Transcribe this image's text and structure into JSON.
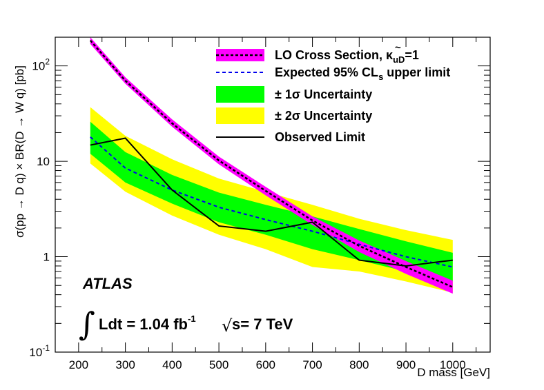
{
  "chart_data": {
    "type": "line",
    "xlabel": "D mass [GeV]",
    "ylabel": "σ(pp → D q) × BR(D → W q) [pb]",
    "xlim": [
      150,
      1080
    ],
    "ylim": [
      0.1,
      200
    ],
    "yscale": "log",
    "x_ticks": [
      200,
      300,
      400,
      500,
      600,
      700,
      800,
      900,
      1000
    ],
    "x_tick_labels": [
      "200",
      "300",
      "400",
      "500",
      "600",
      "700",
      "800",
      "900",
      "1000"
    ],
    "y_ticks": [
      0.1,
      1,
      10,
      100
    ],
    "y_tick_labels": [
      {
        "base": "10",
        "exp": "-1"
      },
      {
        "base": "1",
        "exp": ""
      },
      {
        "base": "10",
        "exp": ""
      },
      {
        "base": "10",
        "exp": "2"
      }
    ],
    "x": [
      225,
      300,
      400,
      500,
      600,
      700,
      800,
      900,
      1000
    ],
    "series": [
      {
        "name": "LO Cross Section",
        "style": "band-with-dashed-center",
        "values": [
          185,
          70,
          25,
          10.2,
          4.9,
          2.4,
          1.3,
          0.78,
          0.48
        ],
        "band_low": [
          170,
          65,
          23,
          9.3,
          4.4,
          2.15,
          1.12,
          0.66,
          0.41
        ],
        "band_high": [
          200,
          76,
          27.5,
          11.2,
          5.4,
          2.65,
          1.48,
          0.9,
          0.56
        ]
      },
      {
        "name": "Expected 95% CLs upper limit",
        "style": "dashed",
        "values": [
          18,
          8.5,
          5.0,
          3.3,
          2.45,
          1.85,
          1.35,
          1.0,
          0.78
        ]
      },
      {
        "name": "± 1σ Uncertainty",
        "style": "band",
        "band_low": [
          12,
          6.0,
          3.6,
          2.3,
          1.7,
          1.2,
          0.92,
          0.7,
          0.55
        ],
        "band_high": [
          26,
          12.5,
          7.2,
          4.7,
          3.5,
          2.65,
          1.95,
          1.45,
          1.1
        ]
      },
      {
        "name": "± 2σ Uncertainty",
        "style": "band",
        "band_low": [
          9.5,
          4.8,
          2.7,
          1.7,
          1.2,
          0.78,
          0.7,
          0.55,
          0.42
        ],
        "band_high": [
          37,
          18.5,
          10.5,
          6.6,
          4.8,
          3.5,
          2.5,
          1.9,
          1.5
        ]
      },
      {
        "name": "Observed Limit",
        "style": "solid",
        "x": [
          225,
          300,
          400,
          500,
          600,
          700,
          800,
          900,
          1000
        ],
        "values": [
          14.8,
          17.5,
          5.0,
          2.1,
          1.85,
          2.3,
          0.92,
          0.8,
          0.92
        ]
      }
    ],
    "colors": {
      "lo_band": "#ff00ff",
      "lo_line": "#000000",
      "expected": "#0000ee",
      "one_sigma": "#00ff00",
      "two_sigma": "#ffff00",
      "observed": "#000000"
    },
    "legend": {
      "placement": "top-right",
      "entries": [
        {
          "key": "lo",
          "text": "LO Cross Section, κ",
          "tilde": "~",
          "sub": "uD",
          "suffix": "=1"
        },
        {
          "key": "expected",
          "text": "Expected 95% CL",
          "sub": "s",
          "suffix": " upper limit"
        },
        {
          "key": "one_sigma",
          "text": "± 1σ Uncertainty"
        },
        {
          "key": "two_sigma",
          "text": "± 2σ Uncertainty"
        },
        {
          "key": "observed",
          "text": "Observed Limit"
        }
      ]
    },
    "annotations": {
      "experiment": "ATLAS",
      "integral_sign": "∫",
      "lumi_prefix": "Ldt = 1.04 fb",
      "lumi_exp": "-1",
      "sqrt_sign": "√",
      "energy": "s= 7 TeV"
    }
  }
}
